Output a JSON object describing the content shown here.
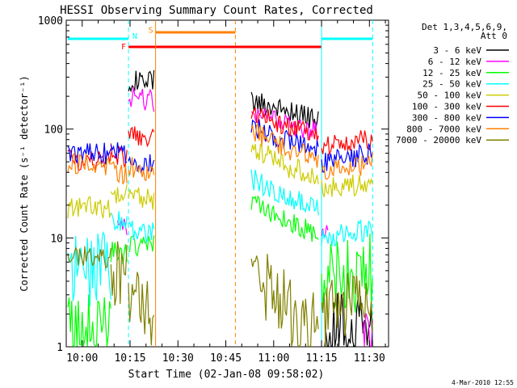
{
  "chart_data": {
    "type": "line",
    "title": "HESSI Observing Summary Count Rates, Corrected",
    "xlabel": "Start Time (02-Jan-08 09:58:02)",
    "ylabel": "Corrected Count Rate (s⁻¹ detector⁻¹)",
    "y_scale": "log",
    "ylim": [
      1,
      1000
    ],
    "xlim_minutes_after_0958": [
      -3,
      98
    ],
    "x_ticks": [
      {
        "label": "10:00",
        "t": 2
      },
      {
        "label": "10:15",
        "t": 17
      },
      {
        "label": "10:30",
        "t": 32
      },
      {
        "label": "10:45",
        "t": 47
      },
      {
        "label": "11:00",
        "t": 62
      },
      {
        "label": "11:15",
        "t": 77
      },
      {
        "label": "11:30",
        "t": 92
      }
    ],
    "y_ticks": [
      {
        "label": "1",
        "v": 1
      },
      {
        "label": "10",
        "v": 10
      },
      {
        "label": "100",
        "v": 100
      },
      {
        "label": "1000",
        "v": 1000
      }
    ],
    "legend_header": [
      "Det 1,3,4,5,6,9,",
      "Att 0"
    ],
    "legend_position": "right",
    "series": [
      {
        "name": "3 - 6 keV",
        "color": "#000000",
        "segments": [
          [
            [
              16.5,
              280
            ],
            [
              22,
              270
            ],
            [
              24.5,
              280
            ]
          ],
          [
            [
              55,
              180
            ],
            [
              66,
              150
            ],
            [
              76,
              120
            ]
          ],
          [
            [
              78,
              1.2
            ],
            [
              84,
              1.5
            ],
            [
              90,
              1.4
            ],
            [
              93,
              1.3
            ]
          ]
        ]
      },
      {
        "name": "6 - 12 keV",
        "color": "#ff00ff",
        "segments": [
          [
            [
              13,
              13
            ],
            [
              16,
              12
            ]
          ],
          [
            [
              16.5,
              200
            ],
            [
              24.5,
              180
            ]
          ],
          [
            [
              55,
              150
            ],
            [
              66,
              110
            ],
            [
              76,
              95
            ]
          ],
          [
            [
              77,
              12
            ],
            [
              79,
              11
            ]
          ],
          [
            [
              90,
              1.5
            ],
            [
              93,
              1.2
            ]
          ]
        ]
      },
      {
        "name": "12 - 25 keV",
        "color": "#00ff00",
        "segments": [
          [
            [
              -2.5,
              1.4
            ],
            [
              11,
              1.4
            ]
          ],
          [
            [
              11,
              7.5
            ],
            [
              16,
              7
            ]
          ],
          [
            [
              16.5,
              9
            ],
            [
              22,
              8
            ],
            [
              24.5,
              9
            ]
          ],
          [
            [
              55,
              22
            ],
            [
              66,
              14
            ],
            [
              76,
              11
            ]
          ],
          [
            [
              77,
              4
            ],
            [
              86,
              4.5
            ],
            [
              93,
              5
            ]
          ]
        ]
      },
      {
        "name": "25 - 50 keV",
        "color": "#00ffff",
        "segments": [
          [
            [
              -2.5,
              5
            ],
            [
              11,
              5.5
            ]
          ],
          [
            [
              11,
              15
            ],
            [
              16,
              14
            ]
          ],
          [
            [
              16.5,
              12
            ],
            [
              24.5,
              11
            ]
          ],
          [
            [
              55,
              35
            ],
            [
              66,
              24
            ],
            [
              76,
              20
            ]
          ],
          [
            [
              77,
              10
            ],
            [
              86,
              11
            ],
            [
              93,
              12
            ]
          ]
        ]
      },
      {
        "name": "50 - 100 keV",
        "color": "#cccc00",
        "segments": [
          [
            [
              -2.5,
              19
            ],
            [
              11,
              19
            ]
          ],
          [
            [
              11,
              24
            ],
            [
              16,
              25
            ]
          ],
          [
            [
              16.5,
              25
            ],
            [
              24.5,
              22
            ]
          ],
          [
            [
              55,
              70
            ],
            [
              66,
              45
            ],
            [
              76,
              38
            ]
          ],
          [
            [
              77,
              28
            ],
            [
              86,
              30
            ],
            [
              93,
              34
            ]
          ]
        ]
      },
      {
        "name": "100 - 300 keV",
        "color": "#ff0000",
        "segments": [
          [
            [
              -2.5,
              52
            ],
            [
              11,
              50
            ]
          ],
          [
            [
              11,
              60
            ],
            [
              16,
              55
            ]
          ],
          [
            [
              16.5,
              95
            ],
            [
              22,
              85
            ],
            [
              24.5,
              90
            ]
          ],
          [
            [
              55,
              140
            ],
            [
              66,
              105
            ],
            [
              76,
              90
            ]
          ],
          [
            [
              77,
              72
            ],
            [
              86,
              74
            ],
            [
              93,
              82
            ]
          ]
        ]
      },
      {
        "name": "300 - 800 keV",
        "color": "#0000ff",
        "segments": [
          [
            [
              -2.5,
              58
            ],
            [
              11,
              60
            ]
          ],
          [
            [
              11,
              65
            ],
            [
              16,
              60
            ]
          ],
          [
            [
              16.5,
              52
            ],
            [
              22,
              47
            ],
            [
              24.5,
              50
            ]
          ],
          [
            [
              55,
              110
            ],
            [
              66,
              78
            ],
            [
              76,
              65
            ]
          ],
          [
            [
              77,
              50
            ],
            [
              86,
              55
            ],
            [
              93,
              60
            ]
          ]
        ]
      },
      {
        "name": "800 - 7000 keV",
        "color": "#ff8000",
        "segments": [
          [
            [
              -2.5,
              48
            ],
            [
              11,
              47
            ]
          ],
          [
            [
              11,
              40
            ],
            [
              16,
              38
            ]
          ],
          [
            [
              16.5,
              45
            ],
            [
              22,
              40
            ],
            [
              24.5,
              42
            ]
          ],
          [
            [
              55,
              95
            ],
            [
              66,
              65
            ],
            [
              76,
              55
            ]
          ],
          [
            [
              77,
              40
            ],
            [
              86,
              44
            ],
            [
              93,
              50
            ]
          ]
        ]
      },
      {
        "name": "7000 - 20000 keV",
        "color": "#808000",
        "segments": [
          [
            [
              -2.5,
              7
            ],
            [
              11,
              6.5
            ]
          ],
          [
            [
              11,
              5
            ],
            [
              16,
              4
            ]
          ],
          [
            [
              16.5,
              2.5
            ],
            [
              22,
              2.2
            ],
            [
              24.5,
              2.3
            ]
          ],
          [
            [
              55,
              7
            ],
            [
              60,
              3.5
            ],
            [
              66,
              2.2
            ],
            [
              76,
              1.5
            ]
          ],
          [
            [
              77,
              2
            ],
            [
              86,
              2.5
            ],
            [
              93,
              2.6
            ]
          ]
        ]
      }
    ],
    "flags": [
      {
        "label": "F",
        "color": "#ff0000",
        "start": 16.5,
        "end": 77
      },
      {
        "label": "N",
        "color": "#00ffff",
        "start": -2.5,
        "end": 16.5
      },
      {
        "label": "N",
        "color": "#00ffff",
        "start": 77,
        "end": 93
      },
      {
        "label": "S",
        "color": "#ff8000",
        "start": 25,
        "end": 50
      }
    ],
    "flag_letters": [
      {
        "label": "F",
        "color": "#ff0000",
        "t": 15,
        "level": 580
      },
      {
        "label": "N",
        "color": "#00ffff",
        "t": 18.5,
        "level": 720
      },
      {
        "label": "S",
        "color": "#ff8000",
        "t": 23.5,
        "level": 820
      }
    ],
    "vertical_lines": [
      {
        "t": 16.5,
        "color": "#00ffff",
        "style": "dashed"
      },
      {
        "t": 25,
        "color": "#ff8000",
        "style": "solid"
      },
      {
        "t": 50,
        "color": "#ff8000",
        "style": "dashed"
      },
      {
        "t": 77,
        "color": "#00ffff",
        "style": "solid"
      },
      {
        "t": 93,
        "color": "#00ffff",
        "style": "dashed"
      }
    ]
  },
  "footer": {
    "date_stamp": "4-Mar-2010 12:55"
  }
}
